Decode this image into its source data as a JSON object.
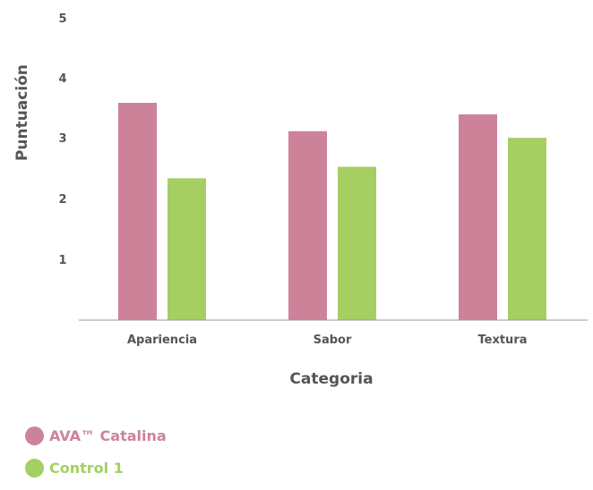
{
  "chart_data": {
    "type": "bar",
    "categories": [
      "Apariencia",
      "Sabor",
      "Textura"
    ],
    "series": [
      {
        "name": "AVA™ Catalina",
        "color": "#cc8399",
        "values": [
          3.6,
          3.13,
          3.41
        ]
      },
      {
        "name": "Control 1",
        "color": "#a5cf62",
        "values": [
          2.35,
          2.54,
          3.02
        ]
      }
    ],
    "xlabel": "Categoria",
    "ylabel": "Puntuación",
    "ylim": [
      0,
      5
    ],
    "yticks": [
      "1",
      "2",
      "3",
      "4",
      "5"
    ],
    "grid": false,
    "legend_position": "bottom-left"
  }
}
